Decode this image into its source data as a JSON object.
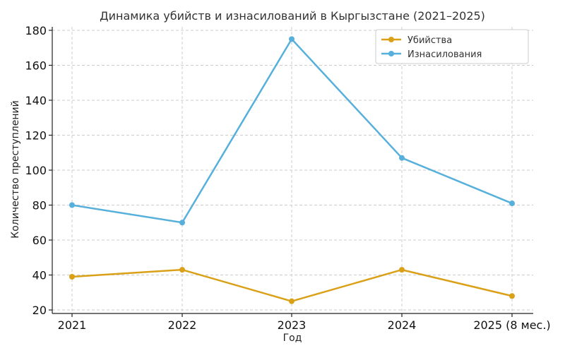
{
  "chart_data": {
    "type": "line",
    "title": "Динамика убийств и изнасилований в Кыргызстане (2021–2025)",
    "xlabel": "Год",
    "ylabel": "Количество преступлений",
    "categories": [
      "2021",
      "2022",
      "2023",
      "2024",
      "2025 (8 мес.)"
    ],
    "ylim": [
      18,
      182
    ],
    "yticks": [
      20,
      40,
      60,
      80,
      100,
      120,
      140,
      160,
      180
    ],
    "grid": true,
    "legend_position": "top-right",
    "series": [
      {
        "name": "Убийства",
        "values": [
          39,
          43,
          25,
          43,
          28
        ],
        "color": "#DAA017"
      },
      {
        "name": "Изнасилования",
        "values": [
          80,
          70,
          175,
          107,
          81
        ],
        "color": "#56B0DB"
      }
    ]
  }
}
